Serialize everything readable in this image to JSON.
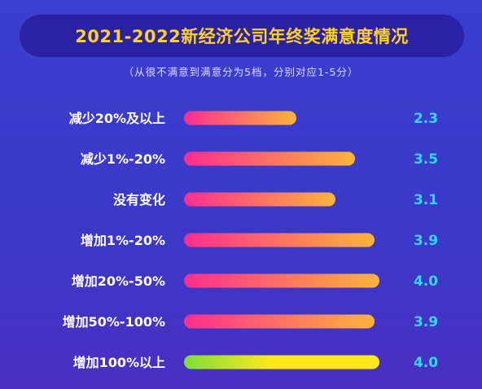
{
  "title": "2021-2022新经济公司年终奖满意度情况",
  "subtitle": "（从很不满意到满意分为5档，分别对应1-5分）",
  "chart_data": {
    "type": "bar",
    "orientation": "horizontal",
    "title": "2021-2022新经济公司年终奖满意度情况",
    "subtitle": "（从很不满意到满意分为5档，分别对应1-5分）",
    "categories": [
      "减少20%及以上",
      "减少1%-20%",
      "没有变化",
      "增加1%-20%",
      "增加20%-50%",
      "增加50%-100%",
      "增加100%以上"
    ],
    "values": [
      2.3,
      3.5,
      3.1,
      3.9,
      4.0,
      3.9,
      4.0
    ],
    "xlim": [
      0,
      5
    ],
    "grid": false,
    "colors": {
      "bar_gradient_start": "#ff2d8f",
      "bar_gradient_end": "#ffb43a",
      "highlight_gradient_start": "#7dde3a",
      "highlight_gradient_end": "#ffe81a",
      "value_label": "#33d7f0",
      "title_text": "#ffd21f"
    }
  }
}
